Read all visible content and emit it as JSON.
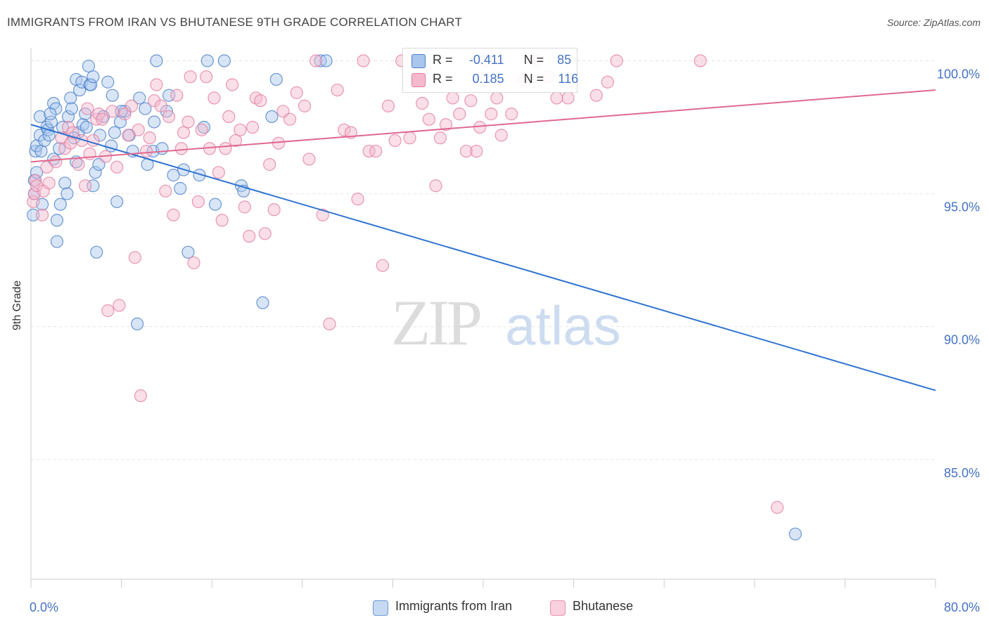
{
  "title": "IMMIGRANTS FROM IRAN VS BHUTANESE 9TH GRADE CORRELATION CHART",
  "source": "Source: ZipAtlas.com",
  "watermark": {
    "zip": "ZIP",
    "atlas": "atlas"
  },
  "legend_top": {
    "rows": [
      {
        "r_label": "R =",
        "r_value": "-0.411",
        "n_label": "N =",
        "n_value": "85"
      },
      {
        "r_label": "R =",
        "r_value": "0.185",
        "n_label": "N =",
        "n_value": "116"
      }
    ]
  },
  "colors": {
    "iran_fill": "#a9c6ee",
    "iran_stroke": "#4a7fc9",
    "iran_line": "#2f73d0",
    "bhutan_fill": "#f5b8cc",
    "bhutan_stroke": "#e47ea0",
    "bhutan_line": "#e0698f",
    "grid": "#e4e4e4",
    "tick_text": "#4472c4"
  },
  "chart_data": {
    "type": "scatter",
    "title": "IMMIGRANTS FROM IRAN VS BHUTANESE 9TH GRADE CORRELATION CHART",
    "xlabel": "",
    "ylabel": "9th Grade",
    "xlim": [
      0,
      80
    ],
    "ylim": [
      80.5,
      100.7
    ],
    "x_tick_labels": [
      "0.0%",
      "80.0%"
    ],
    "y_ticks": [
      85,
      90,
      95,
      100
    ],
    "y_tick_labels": [
      "85.0%",
      "90.0%",
      "95.0%",
      "100.0%"
    ],
    "legend_position": "bottom",
    "series": [
      {
        "name": "Immigrants from Iran",
        "r": -0.411,
        "n": 85,
        "trend": {
          "x": [
            0,
            80
          ],
          "y": [
            97.6,
            87.6
          ]
        },
        "points": [
          [
            0.2,
            94.2
          ],
          [
            0.3,
            95.5
          ],
          [
            0.3,
            95.0
          ],
          [
            0.4,
            96.6
          ],
          [
            0.5,
            96.8
          ],
          [
            0.5,
            95.8
          ],
          [
            0.8,
            97.9
          ],
          [
            0.8,
            97.2
          ],
          [
            0.9,
            96.6
          ],
          [
            1.0,
            94.6
          ],
          [
            1.2,
            97.0
          ],
          [
            1.4,
            97.5
          ],
          [
            1.5,
            97.4
          ],
          [
            1.6,
            97.2
          ],
          [
            1.8,
            97.7
          ],
          [
            2.0,
            98.4
          ],
          [
            2.0,
            96.3
          ],
          [
            2.2,
            98.2
          ],
          [
            2.3,
            93.2
          ],
          [
            2.3,
            94.0
          ],
          [
            2.6,
            94.6
          ],
          [
            2.8,
            97.5
          ],
          [
            3.0,
            95.4
          ],
          [
            3.2,
            95.0
          ],
          [
            3.3,
            97.9
          ],
          [
            3.5,
            98.6
          ],
          [
            3.6,
            98.2
          ],
          [
            4.0,
            99.3
          ],
          [
            4.2,
            97.3
          ],
          [
            4.3,
            98.9
          ],
          [
            4.5,
            99.2
          ],
          [
            4.6,
            97.6
          ],
          [
            4.8,
            98.0
          ],
          [
            4.9,
            97.5
          ],
          [
            5.1,
            99.8
          ],
          [
            5.2,
            99.1
          ],
          [
            5.3,
            99.1
          ],
          [
            5.5,
            99.4
          ],
          [
            5.5,
            95.3
          ],
          [
            5.7,
            95.8
          ],
          [
            5.8,
            92.8
          ],
          [
            6.1,
            97.2
          ],
          [
            6.4,
            97.9
          ],
          [
            6.8,
            99.2
          ],
          [
            7.1,
            96.8
          ],
          [
            7.2,
            98.7
          ],
          [
            7.4,
            97.3
          ],
          [
            7.6,
            94.7
          ],
          [
            7.9,
            97.7
          ],
          [
            8.3,
            98.1
          ],
          [
            8.7,
            97.2
          ],
          [
            9.4,
            90.1
          ],
          [
            9.6,
            98.6
          ],
          [
            10.1,
            98.2
          ],
          [
            10.3,
            96.1
          ],
          [
            10.8,
            96.6
          ],
          [
            10.9,
            97.7
          ],
          [
            11.1,
            100.0
          ],
          [
            11.6,
            96.7
          ],
          [
            12.2,
            98.7
          ],
          [
            12.6,
            95.7
          ],
          [
            13.2,
            95.2
          ],
          [
            13.5,
            95.9
          ],
          [
            13.9,
            92.8
          ],
          [
            14.9,
            95.7
          ],
          [
            15.3,
            97.5
          ],
          [
            15.6,
            100.0
          ],
          [
            16.3,
            94.6
          ],
          [
            17.1,
            100.0
          ],
          [
            18.6,
            95.3
          ],
          [
            18.8,
            95.1
          ],
          [
            20.5,
            90.9
          ],
          [
            21.3,
            97.9
          ],
          [
            21.7,
            99.3
          ],
          [
            25.6,
            100.0
          ],
          [
            26.1,
            100.0
          ],
          [
            4.0,
            96.2
          ],
          [
            6.0,
            96.1
          ],
          [
            1.7,
            98.0
          ],
          [
            2.5,
            96.7
          ],
          [
            3.8,
            97.1
          ],
          [
            8.0,
            98.1
          ],
          [
            12.0,
            98.1
          ],
          [
            9.0,
            96.6
          ],
          [
            67.6,
            82.2
          ]
        ]
      },
      {
        "name": "Bhutanese",
        "r": 0.185,
        "n": 116,
        "trend": {
          "x": [
            0,
            80
          ],
          "y": [
            96.2,
            98.9
          ]
        },
        "points": [
          [
            0.2,
            94.7
          ],
          [
            0.3,
            95.0
          ],
          [
            0.4,
            95.5
          ],
          [
            0.5,
            95.3
          ],
          [
            1.0,
            94.2
          ],
          [
            1.1,
            95.1
          ],
          [
            1.4,
            96.0
          ],
          [
            1.6,
            95.4
          ],
          [
            2.2,
            96.2
          ],
          [
            2.7,
            97.1
          ],
          [
            3.0,
            96.7
          ],
          [
            3.3,
            97.5
          ],
          [
            3.5,
            96.9
          ],
          [
            3.7,
            97.3
          ],
          [
            4.2,
            96.1
          ],
          [
            4.5,
            97.0
          ],
          [
            4.8,
            95.3
          ],
          [
            5.0,
            98.2
          ],
          [
            5.2,
            96.5
          ],
          [
            5.5,
            97.0
          ],
          [
            5.8,
            97.8
          ],
          [
            6.0,
            98.0
          ],
          [
            6.3,
            97.8
          ],
          [
            6.6,
            96.4
          ],
          [
            6.8,
            90.6
          ],
          [
            7.2,
            98.1
          ],
          [
            7.6,
            96.0
          ],
          [
            7.8,
            90.8
          ],
          [
            8.3,
            98.0
          ],
          [
            8.6,
            97.2
          ],
          [
            8.9,
            98.3
          ],
          [
            9.2,
            92.6
          ],
          [
            9.5,
            97.4
          ],
          [
            9.7,
            87.4
          ],
          [
            10.2,
            96.6
          ],
          [
            10.5,
            97.1
          ],
          [
            10.9,
            98.5
          ],
          [
            11.1,
            99.1
          ],
          [
            11.5,
            98.3
          ],
          [
            11.9,
            95.1
          ],
          [
            12.2,
            97.9
          ],
          [
            12.6,
            94.2
          ],
          [
            12.9,
            98.7
          ],
          [
            13.3,
            96.7
          ],
          [
            13.5,
            97.3
          ],
          [
            13.9,
            97.7
          ],
          [
            14.1,
            99.4
          ],
          [
            14.4,
            92.4
          ],
          [
            14.8,
            94.7
          ],
          [
            15.1,
            97.4
          ],
          [
            15.5,
            99.4
          ],
          [
            15.8,
            96.7
          ],
          [
            16.2,
            98.6
          ],
          [
            16.6,
            95.8
          ],
          [
            16.9,
            94.0
          ],
          [
            17.2,
            96.7
          ],
          [
            17.5,
            97.9
          ],
          [
            17.8,
            99.1
          ],
          [
            18.1,
            97.0
          ],
          [
            18.5,
            97.4
          ],
          [
            18.9,
            94.5
          ],
          [
            19.3,
            93.4
          ],
          [
            19.6,
            97.5
          ],
          [
            19.9,
            98.6
          ],
          [
            20.3,
            98.5
          ],
          [
            20.7,
            93.5
          ],
          [
            21.1,
            96.1
          ],
          [
            21.5,
            94.4
          ],
          [
            21.9,
            96.9
          ],
          [
            22.3,
            98.1
          ],
          [
            22.9,
            97.8
          ],
          [
            23.5,
            98.8
          ],
          [
            24.2,
            98.3
          ],
          [
            24.6,
            96.3
          ],
          [
            25.2,
            100.0
          ],
          [
            25.8,
            94.2
          ],
          [
            26.4,
            90.1
          ],
          [
            27.1,
            98.9
          ],
          [
            27.7,
            97.4
          ],
          [
            28.3,
            97.3
          ],
          [
            28.9,
            94.8
          ],
          [
            29.4,
            100.0
          ],
          [
            29.9,
            96.6
          ],
          [
            30.5,
            96.6
          ],
          [
            31.1,
            92.3
          ],
          [
            31.6,
            98.3
          ],
          [
            32.2,
            97.0
          ],
          [
            32.8,
            100.0
          ],
          [
            33.5,
            97.1
          ],
          [
            34.1,
            99.2
          ],
          [
            34.6,
            98.4
          ],
          [
            35.2,
            97.8
          ],
          [
            35.8,
            95.3
          ],
          [
            36.2,
            97.1
          ],
          [
            36.7,
            97.6
          ],
          [
            37.3,
            98.6
          ],
          [
            37.9,
            98.0
          ],
          [
            38.5,
            96.6
          ],
          [
            38.9,
            98.5
          ],
          [
            39.4,
            96.6
          ],
          [
            39.7,
            97.5
          ],
          [
            40.2,
            100.0
          ],
          [
            40.7,
            98.0
          ],
          [
            41.2,
            98.6
          ],
          [
            41.6,
            97.2
          ],
          [
            42.5,
            98.0
          ],
          [
            43.5,
            99.3
          ],
          [
            44.7,
            100.0
          ],
          [
            45.8,
            99.4
          ],
          [
            46.5,
            98.6
          ],
          [
            47.5,
            98.6
          ],
          [
            50.0,
            98.7
          ],
          [
            51.0,
            99.2
          ],
          [
            51.8,
            100.0
          ],
          [
            59.2,
            100.0
          ],
          [
            66.0,
            83.2
          ]
        ]
      }
    ]
  },
  "x_axis": {
    "left_label": "0.0%",
    "right_label": "80.0%"
  },
  "bottom_legend": {
    "items": [
      {
        "label": "Immigrants from Iran"
      },
      {
        "label": "Bhutanese"
      }
    ]
  }
}
